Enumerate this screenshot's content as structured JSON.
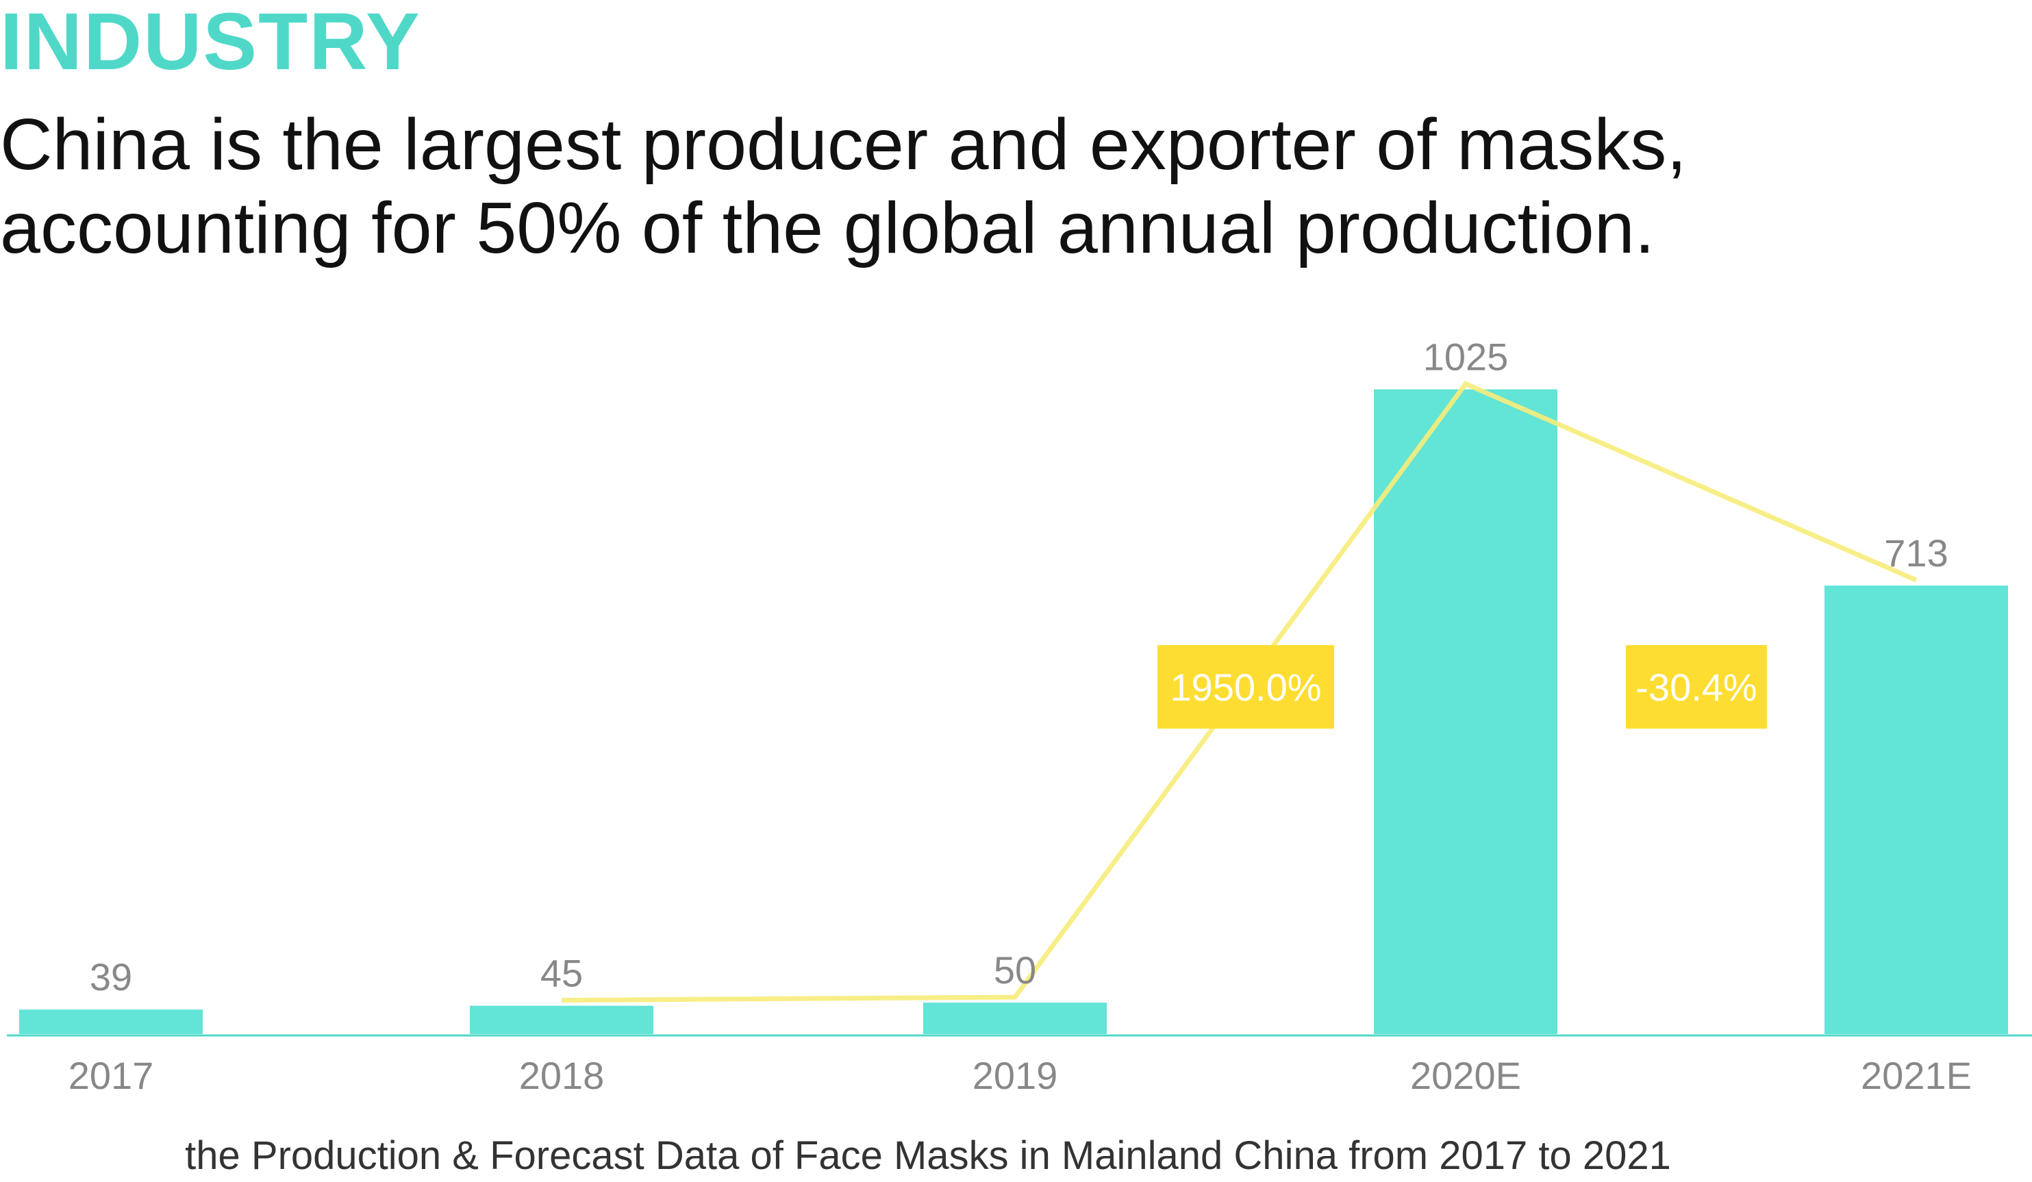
{
  "header": {
    "kicker": "INDUSTRY",
    "headline": "China is the largest producer and exporter of masks, accounting for 50% of the global annual production."
  },
  "colors": {
    "accent": "#4fd8c8",
    "bar": "#62e4d6",
    "line": "#f7ec7a",
    "badge": "#fedd32",
    "label": "#888888",
    "caption": "#333333"
  },
  "chart_data": {
    "type": "bar",
    "categories": [
      "2017",
      "2018",
      "2019",
      "2020E",
      "2021E"
    ],
    "series": [
      {
        "values": [
          39,
          45,
          50,
          1025,
          713
        ]
      }
    ],
    "data_labels": [
      "39",
      "45",
      "50",
      "1025",
      "713"
    ],
    "growth_line": {
      "points": [
        {
          "category": "2018",
          "value": 45
        },
        {
          "category": "2019",
          "value": 50
        },
        {
          "category": "2020E",
          "value": 1025
        },
        {
          "category": "2021E",
          "value": 713
        }
      ],
      "annotations": [
        {
          "from": "2019",
          "to": "2020E",
          "label": "1950.0%"
        },
        {
          "from": "2020E",
          "to": "2021E",
          "label": "-30.4%"
        }
      ]
    },
    "caption": "the Production & Forecast Data of Face Masks in Mainland China from 2017 to 2021",
    "ylim": [
      0,
      1100
    ],
    "grid": false,
    "legend": "none"
  }
}
